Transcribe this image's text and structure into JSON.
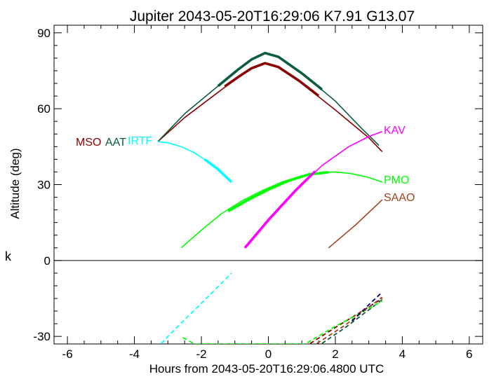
{
  "chart_data": {
    "type": "line",
    "title": "Jupiter 2043-05-20T16:29:06  K7.91  G13.07",
    "xlabel": "Hours from 2043-05-20T16:29:06.4800 UTC",
    "ylabel": "Altitude (deg)",
    "xlim": [
      -6.4,
      6.4
    ],
    "ylim": [
      -33,
      93
    ],
    "x_ticks": [
      -6,
      -4,
      -2,
      0,
      2,
      4,
      6
    ],
    "x_tick_labels": [
      "-6",
      "-4",
      "-2",
      "0",
      "2",
      "4",
      "6"
    ],
    "y_ticks": [
      -30,
      0,
      30,
      60,
      90
    ],
    "y_tick_labels": [
      "-30",
      "0",
      "30",
      "60",
      "90"
    ],
    "side_label": "k",
    "zero_line": true,
    "series": [
      {
        "name": "MSO",
        "color": "#8b0000",
        "solid": [
          [
            -3.3,
            47
          ],
          [
            -2.5,
            56.5
          ],
          [
            -1.5,
            66.5
          ],
          [
            -0.9,
            72.5
          ],
          [
            -0.5,
            76
          ],
          [
            -0.1,
            78
          ],
          [
            0.3,
            76.5
          ],
          [
            1.0,
            70
          ],
          [
            2.0,
            59.5
          ],
          [
            3.0,
            48.5
          ],
          [
            3.4,
            43
          ]
        ],
        "thick": [
          [
            -1.3,
            68.8
          ],
          [
            -0.9,
            72.5
          ],
          [
            -0.5,
            76
          ],
          [
            -0.1,
            78
          ],
          [
            0.3,
            76.5
          ],
          [
            0.9,
            71.2
          ],
          [
            1.5,
            65.1
          ]
        ],
        "dashed": [
          [
            1.25,
            -32.8
          ],
          [
            2.0,
            -26.5
          ],
          [
            2.8,
            -20
          ],
          [
            3.4,
            -15
          ]
        ]
      },
      {
        "name": "AAT",
        "color": "#0b5d3d",
        "solid": [
          [
            -3.3,
            47
          ],
          [
            -2.5,
            58
          ],
          [
            -1.5,
            69
          ],
          [
            -0.9,
            75.5
          ],
          [
            -0.5,
            79.5
          ],
          [
            -0.1,
            82
          ],
          [
            0.3,
            80.5
          ],
          [
            1.0,
            74
          ],
          [
            2.0,
            63
          ],
          [
            2.8,
            52
          ],
          [
            3.3,
            45.5
          ]
        ],
        "thick": [
          [
            -1.5,
            69
          ],
          [
            -0.9,
            75.5
          ],
          [
            -0.5,
            79.5
          ],
          [
            -0.1,
            82
          ],
          [
            0.3,
            80.5
          ],
          [
            1.0,
            74
          ],
          [
            1.6,
            67.6
          ]
        ],
        "dashed": [
          [
            1.6,
            -32.8
          ],
          [
            2.3,
            -26.5
          ],
          [
            3.0,
            -19.5
          ],
          [
            3.4,
            -15.5
          ]
        ]
      },
      {
        "name": "IRTF",
        "color": "#00ffff",
        "solid": [
          [
            -3.3,
            47
          ],
          [
            -3.0,
            46.5
          ],
          [
            -2.6,
            45
          ],
          [
            -2.2,
            42.5
          ],
          [
            -1.8,
            39
          ],
          [
            -1.4,
            35
          ],
          [
            -1.1,
            31
          ]
        ],
        "thick": [
          [
            -1.9,
            40
          ],
          [
            -1.5,
            36
          ],
          [
            -1.1,
            31
          ]
        ],
        "dashed": [
          [
            -3.2,
            -32.8
          ],
          [
            -2.7,
            -26
          ],
          [
            -2.2,
            -19.5
          ],
          [
            -1.7,
            -13
          ],
          [
            -1.1,
            -5
          ]
        ]
      },
      {
        "name": "PMO",
        "color": "#00ff00",
        "solid": [
          [
            -2.6,
            5
          ],
          [
            -2.0,
            12
          ],
          [
            -1.4,
            18.5
          ],
          [
            -0.8,
            23.5
          ],
          [
            -0.2,
            27.5
          ],
          [
            0.4,
            31
          ],
          [
            1.0,
            33.5
          ],
          [
            1.6,
            34.8
          ],
          [
            2.0,
            35
          ],
          [
            2.5,
            34.3
          ],
          [
            3.0,
            32.8
          ],
          [
            3.4,
            31
          ]
        ],
        "thick": [
          [
            -1.2,
            19.5
          ],
          [
            -0.6,
            24
          ],
          [
            0.0,
            28
          ],
          [
            0.6,
            31.5
          ],
          [
            1.2,
            34
          ],
          [
            1.8,
            34.9
          ]
        ],
        "dashed": [
          [
            -2.55,
            -30.5
          ],
          [
            -2.2,
            -33
          ],
          [
            1.1,
            -33
          ],
          [
            2.0,
            -26
          ],
          [
            2.8,
            -20.5
          ],
          [
            3.4,
            -16
          ]
        ]
      },
      {
        "name": "KAV",
        "color": "#ff00ff",
        "solid": [
          [
            -0.7,
            5
          ],
          [
            0.0,
            16
          ],
          [
            0.8,
            27.5
          ],
          [
            1.6,
            37.5
          ],
          [
            2.4,
            45
          ],
          [
            3.0,
            49
          ],
          [
            3.4,
            51
          ]
        ],
        "thick": [
          [
            -0.7,
            5
          ],
          [
            0.0,
            16
          ],
          [
            0.8,
            27.5
          ],
          [
            1.4,
            35.3
          ]
        ],
        "dashed": []
      },
      {
        "name": "SAAO",
        "color": "#a0421a",
        "solid": [
          [
            1.8,
            5
          ],
          [
            2.6,
            14
          ],
          [
            3.4,
            24
          ]
        ],
        "thick": [],
        "dashed": [
          [
            1.45,
            -32.8
          ],
          [
            2.3,
            -25.5
          ],
          [
            3.0,
            -18.5
          ],
          [
            3.4,
            -14.5
          ]
        ]
      },
      {
        "name": "",
        "color": "#000080",
        "solid": [],
        "thick": [],
        "dashed": [
          [
            2.5,
            -24
          ],
          [
            3.0,
            -17.5
          ],
          [
            3.4,
            -12.5
          ]
        ]
      }
    ]
  }
}
